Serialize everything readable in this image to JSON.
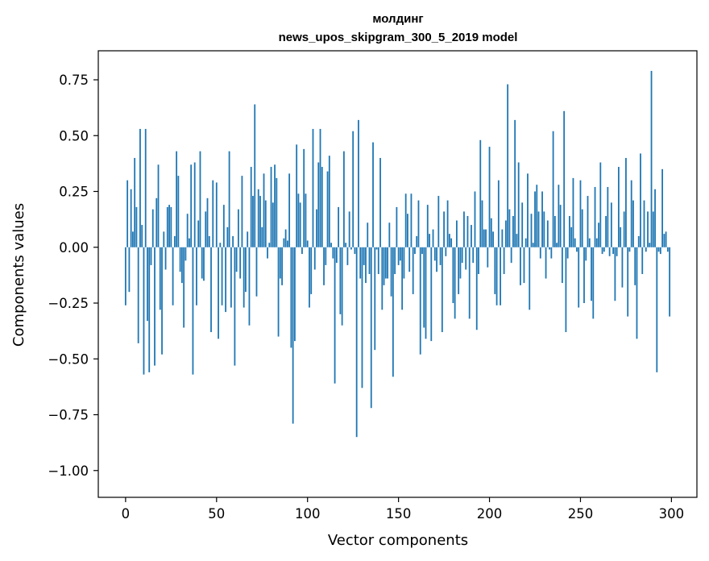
{
  "chart_data": {
    "type": "bar",
    "title_line1": "молдинг",
    "title_line2": "news_upos_skipgram_300_5_2019 model",
    "xlabel": "Vector components",
    "ylabel": "Components values",
    "xlim": [
      -15,
      314
    ],
    "ylim": [
      -1.12,
      0.88
    ],
    "x_ticks": [
      0,
      50,
      100,
      150,
      200,
      250,
      300
    ],
    "x_tick_labels": [
      "0",
      "50",
      "100",
      "150",
      "200",
      "250",
      "300"
    ],
    "y_ticks": [
      0.75,
      0.5,
      0.25,
      0.0,
      -0.25,
      -0.5,
      -0.75,
      -1.0
    ],
    "y_tick_labels": [
      "0.75",
      "0.50",
      "0.25",
      "0.00",
      "−0.25",
      "−0.50",
      "−0.75",
      "−1.00"
    ],
    "bar_color": "#1f77b4",
    "values": [
      -0.26,
      0.3,
      -0.2,
      0.26,
      0.07,
      0.4,
      0.18,
      -0.43,
      0.53,
      0.1,
      -0.57,
      0.53,
      -0.33,
      -0.56,
      -0.08,
      0.17,
      -0.53,
      0.22,
      0.37,
      -0.28,
      -0.48,
      0.07,
      -0.1,
      0.18,
      0.19,
      0.18,
      -0.26,
      0.05,
      0.43,
      0.32,
      -0.11,
      -0.16,
      -0.36,
      -0.06,
      0.15,
      0.04,
      0.37,
      -0.57,
      0.38,
      -0.26,
      0.12,
      0.43,
      -0.14,
      -0.15,
      0.16,
      0.22,
      0.05,
      -0.38,
      0.3,
      0.0,
      0.29,
      -0.41,
      0.02,
      -0.26,
      0.19,
      -0.29,
      0.09,
      0.43,
      -0.27,
      0.05,
      -0.53,
      -0.11,
      0.17,
      -0.14,
      0.32,
      -0.27,
      -0.2,
      0.07,
      -0.35,
      0.36,
      0.23,
      0.64,
      -0.22,
      0.26,
      0.23,
      0.09,
      0.33,
      0.21,
      -0.05,
      0.02,
      0.36,
      0.2,
      0.37,
      0.31,
      -0.4,
      -0.14,
      -0.17,
      0.04,
      0.08,
      0.03,
      0.33,
      -0.45,
      -0.79,
      -0.42,
      0.46,
      0.24,
      0.2,
      -0.03,
      0.44,
      0.24,
      0.03,
      -0.27,
      -0.21,
      0.53,
      -0.1,
      0.17,
      0.38,
      0.53,
      0.36,
      -0.17,
      -0.08,
      0.34,
      0.41,
      0.02,
      -0.05,
      -0.61,
      -0.07,
      0.18,
      -0.3,
      -0.35,
      0.43,
      0.02,
      -0.08,
      0.16,
      -0.01,
      0.52,
      -0.03,
      -0.85,
      0.57,
      -0.14,
      -0.63,
      -0.08,
      -0.16,
      0.11,
      -0.12,
      -0.72,
      0.47,
      -0.46,
      -0.01,
      -0.12,
      0.4,
      -0.28,
      -0.17,
      -0.14,
      -0.14,
      0.11,
      -0.22,
      -0.58,
      -0.12,
      0.18,
      -0.08,
      -0.06,
      -0.28,
      -0.14,
      0.24,
      0.15,
      -0.11,
      0.24,
      -0.21,
      -0.03,
      0.05,
      0.21,
      -0.48,
      -0.03,
      -0.36,
      -0.41,
      0.19,
      0.06,
      -0.42,
      0.08,
      -0.06,
      -0.11,
      0.23,
      -0.08,
      -0.38,
      0.16,
      -0.04,
      0.21,
      0.06,
      0.04,
      -0.25,
      -0.32,
      0.12,
      -0.21,
      -0.14,
      -0.07,
      0.16,
      -0.1,
      0.14,
      -0.32,
      0.1,
      -0.07,
      0.25,
      -0.37,
      -0.12,
      0.48,
      0.21,
      0.08,
      0.08,
      -0.09,
      0.45,
      0.13,
      0.07,
      -0.21,
      -0.26,
      0.3,
      -0.26,
      0.08,
      -0.12,
      0.12,
      0.73,
      0.17,
      -0.07,
      0.14,
      0.57,
      0.06,
      0.38,
      -0.17,
      0.2,
      -0.16,
      0.04,
      0.33,
      -0.28,
      0.15,
      0.02,
      0.25,
      0.28,
      0.16,
      -0.05,
      0.25,
      0.16,
      -0.14,
      0.12,
      -0.01,
      -0.05,
      0.52,
      0.14,
      0.02,
      0.28,
      0.19,
      -0.16,
      0.61,
      -0.38,
      -0.05,
      0.14,
      0.09,
      0.31,
      0.04,
      -0.02,
      -0.27,
      0.3,
      0.17,
      -0.25,
      -0.06,
      0.23,
      0.04,
      -0.24,
      -0.32,
      0.27,
      0.04,
      0.11,
      0.38,
      -0.03,
      -0.02,
      0.14,
      0.27,
      -0.04,
      0.2,
      -0.03,
      -0.24,
      -0.04,
      0.36,
      0.09,
      -0.18,
      0.16,
      0.4,
      -0.31,
      -0.02,
      0.3,
      0.21,
      -0.17,
      -0.41,
      0.05,
      0.42,
      -0.12,
      0.21,
      -0.02,
      0.16,
      0.02,
      0.79,
      0.16,
      0.26,
      -0.56,
      -0.02,
      -0.03,
      0.35,
      0.06,
      0.07,
      -0.02,
      -0.31
    ]
  }
}
